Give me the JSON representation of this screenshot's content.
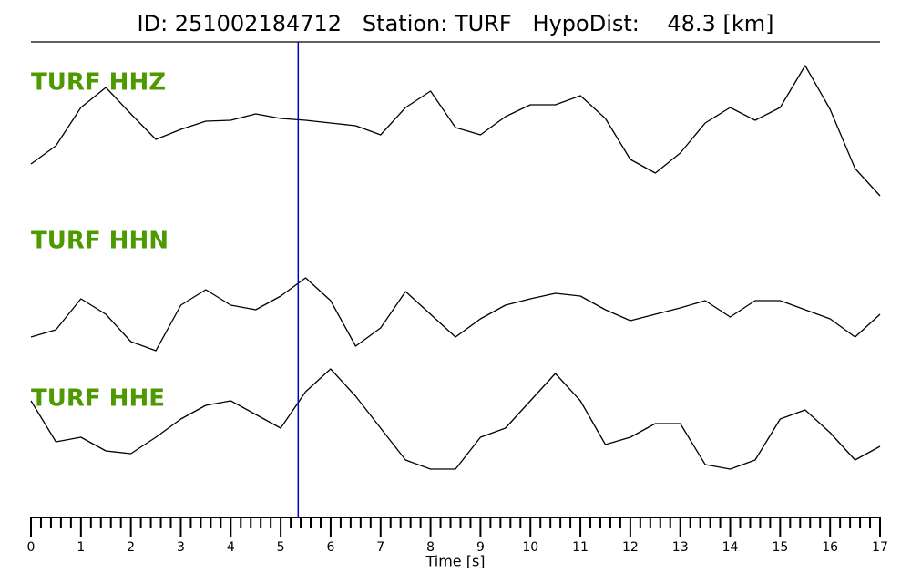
{
  "chart_data": {
    "type": "line",
    "title": "ID: 251002184712   Station: TURF   HypoDist:    48.3 [km]",
    "xlabel": "Time [s]",
    "x": [
      0,
      0.5,
      1,
      1.5,
      2,
      2.5,
      3,
      3.5,
      4,
      4.5,
      5,
      5.5,
      6,
      6.5,
      7,
      7.5,
      8,
      8.5,
      9,
      9.5,
      10,
      10.5,
      11,
      11.5,
      12,
      12.5,
      13,
      13.5,
      14,
      14.5,
      15,
      15.5,
      16,
      16.5,
      17
    ],
    "xlim": [
      0,
      17
    ],
    "xticks": [
      0,
      1,
      2,
      3,
      4,
      5,
      6,
      7,
      8,
      9,
      10,
      11,
      12,
      13,
      14,
      15,
      16,
      17
    ],
    "xminorticks": [
      0.2,
      0.4,
      0.6,
      0.8,
      1.2,
      1.4,
      1.6,
      1.8,
      2.2,
      2.4,
      2.6,
      2.8,
      3.2,
      3.4,
      3.6,
      3.8,
      4.2,
      4.4,
      4.6,
      4.8,
      5.2,
      5.4,
      5.6,
      5.8,
      6.2,
      6.4,
      6.6,
      6.8,
      7.2,
      7.4,
      7.6,
      7.8,
      8.2,
      8.4,
      8.6,
      8.8,
      9.2,
      9.4,
      9.6,
      9.8,
      10.2,
      10.4,
      10.6,
      10.8,
      11.2,
      11.4,
      11.6,
      11.8,
      12.2,
      12.4,
      12.6,
      12.8,
      13.2,
      13.4,
      13.6,
      13.8,
      14.2,
      14.4,
      14.6,
      14.8,
      15.2,
      15.4,
      15.6,
      15.8,
      16.2,
      16.4,
      16.6,
      16.8
    ],
    "pick_x": 5.35,
    "pick_color": "#0000cc",
    "label_color": "#4c9a00",
    "series": [
      {
        "name": "TURF HHZ",
        "color": "#000000",
        "ylim": [
          -80,
          80
        ],
        "values": [
          -35,
          -15,
          27,
          49,
          20,
          -8,
          3,
          12,
          13,
          20,
          15,
          13,
          10,
          7,
          -3,
          27,
          45,
          5,
          -3,
          17,
          30,
          30,
          40,
          15,
          -30,
          -45,
          -23,
          10,
          27,
          13,
          27,
          73,
          25,
          -40,
          -70
        ]
      },
      {
        "name": "TURF HHN",
        "color": "#000000",
        "ylim": [
          -80,
          80
        ],
        "values": [
          -30,
          -22,
          12,
          -5,
          -35,
          -45,
          5,
          22,
          5,
          0,
          15,
          35,
          10,
          -40,
          -20,
          20,
          -5,
          -30,
          -10,
          5,
          12,
          18,
          15,
          0,
          -12,
          -5,
          2,
          10,
          -8,
          10,
          10,
          0,
          -10,
          -30,
          -5
        ]
      },
      {
        "name": "TURF HHE",
        "color": "#000000",
        "ylim": [
          -80,
          80
        ],
        "values": [
          25,
          -20,
          -15,
          -30,
          -33,
          -15,
          5,
          20,
          25,
          10,
          -5,
          35,
          60,
          30,
          -5,
          -40,
          -50,
          -50,
          -15,
          -5,
          25,
          55,
          25,
          -23,
          -15,
          0,
          0,
          -45,
          -50,
          -40,
          5,
          15,
          -10,
          -40,
          -25
        ]
      }
    ]
  }
}
